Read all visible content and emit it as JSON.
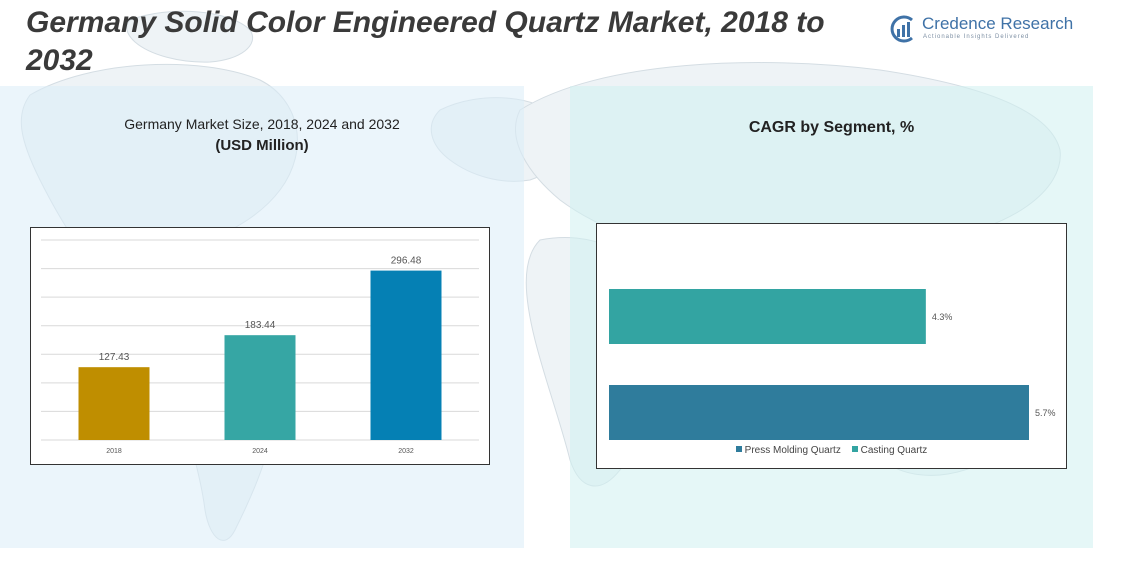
{
  "title": "Germany Solid Color Engineered Quartz Market, 2018 to 2032",
  "logo": {
    "name": "Credence Research",
    "tagline": "Actionable Insights Delivered"
  },
  "colors": {
    "title_text": "#3a3a3a",
    "brand_blue": "#3f72a7",
    "bar_2018": "#bf8e00",
    "bar_2024": "#36a6a4",
    "bar_2032": "#0580b4",
    "press_molding": "#2f7c9c",
    "casting": "#33a4a2"
  },
  "chart_data": [
    {
      "type": "bar",
      "title": "Germany Market Size, 2018, 2024 and 2032",
      "subtitle": "(USD Million)",
      "categories": [
        "2018",
        "2024",
        "2032"
      ],
      "values": [
        127.43,
        183.44,
        296.48
      ],
      "value_labels": [
        "127.43",
        "183.44",
        "296.48"
      ],
      "ylim": [
        0,
        350
      ],
      "grid": true,
      "legend": "none",
      "bar_colors": [
        "#bf8e00",
        "#36a6a4",
        "#0580b4"
      ]
    },
    {
      "type": "bar",
      "orientation": "horizontal",
      "title": "CAGR by Segment, %",
      "series": [
        {
          "name": "Casting Quartz",
          "value": 4.3,
          "label": "4.3%",
          "color": "#33a4a2"
        },
        {
          "name": "Press Molding Quartz",
          "value": 5.7,
          "label": "5.7%",
          "color": "#2f7c9c"
        }
      ],
      "xlim": [
        0,
        6
      ],
      "grid": false,
      "legend": "bottom",
      "legend_order": [
        "Press Molding Quartz",
        "Casting Quartz"
      ]
    }
  ]
}
